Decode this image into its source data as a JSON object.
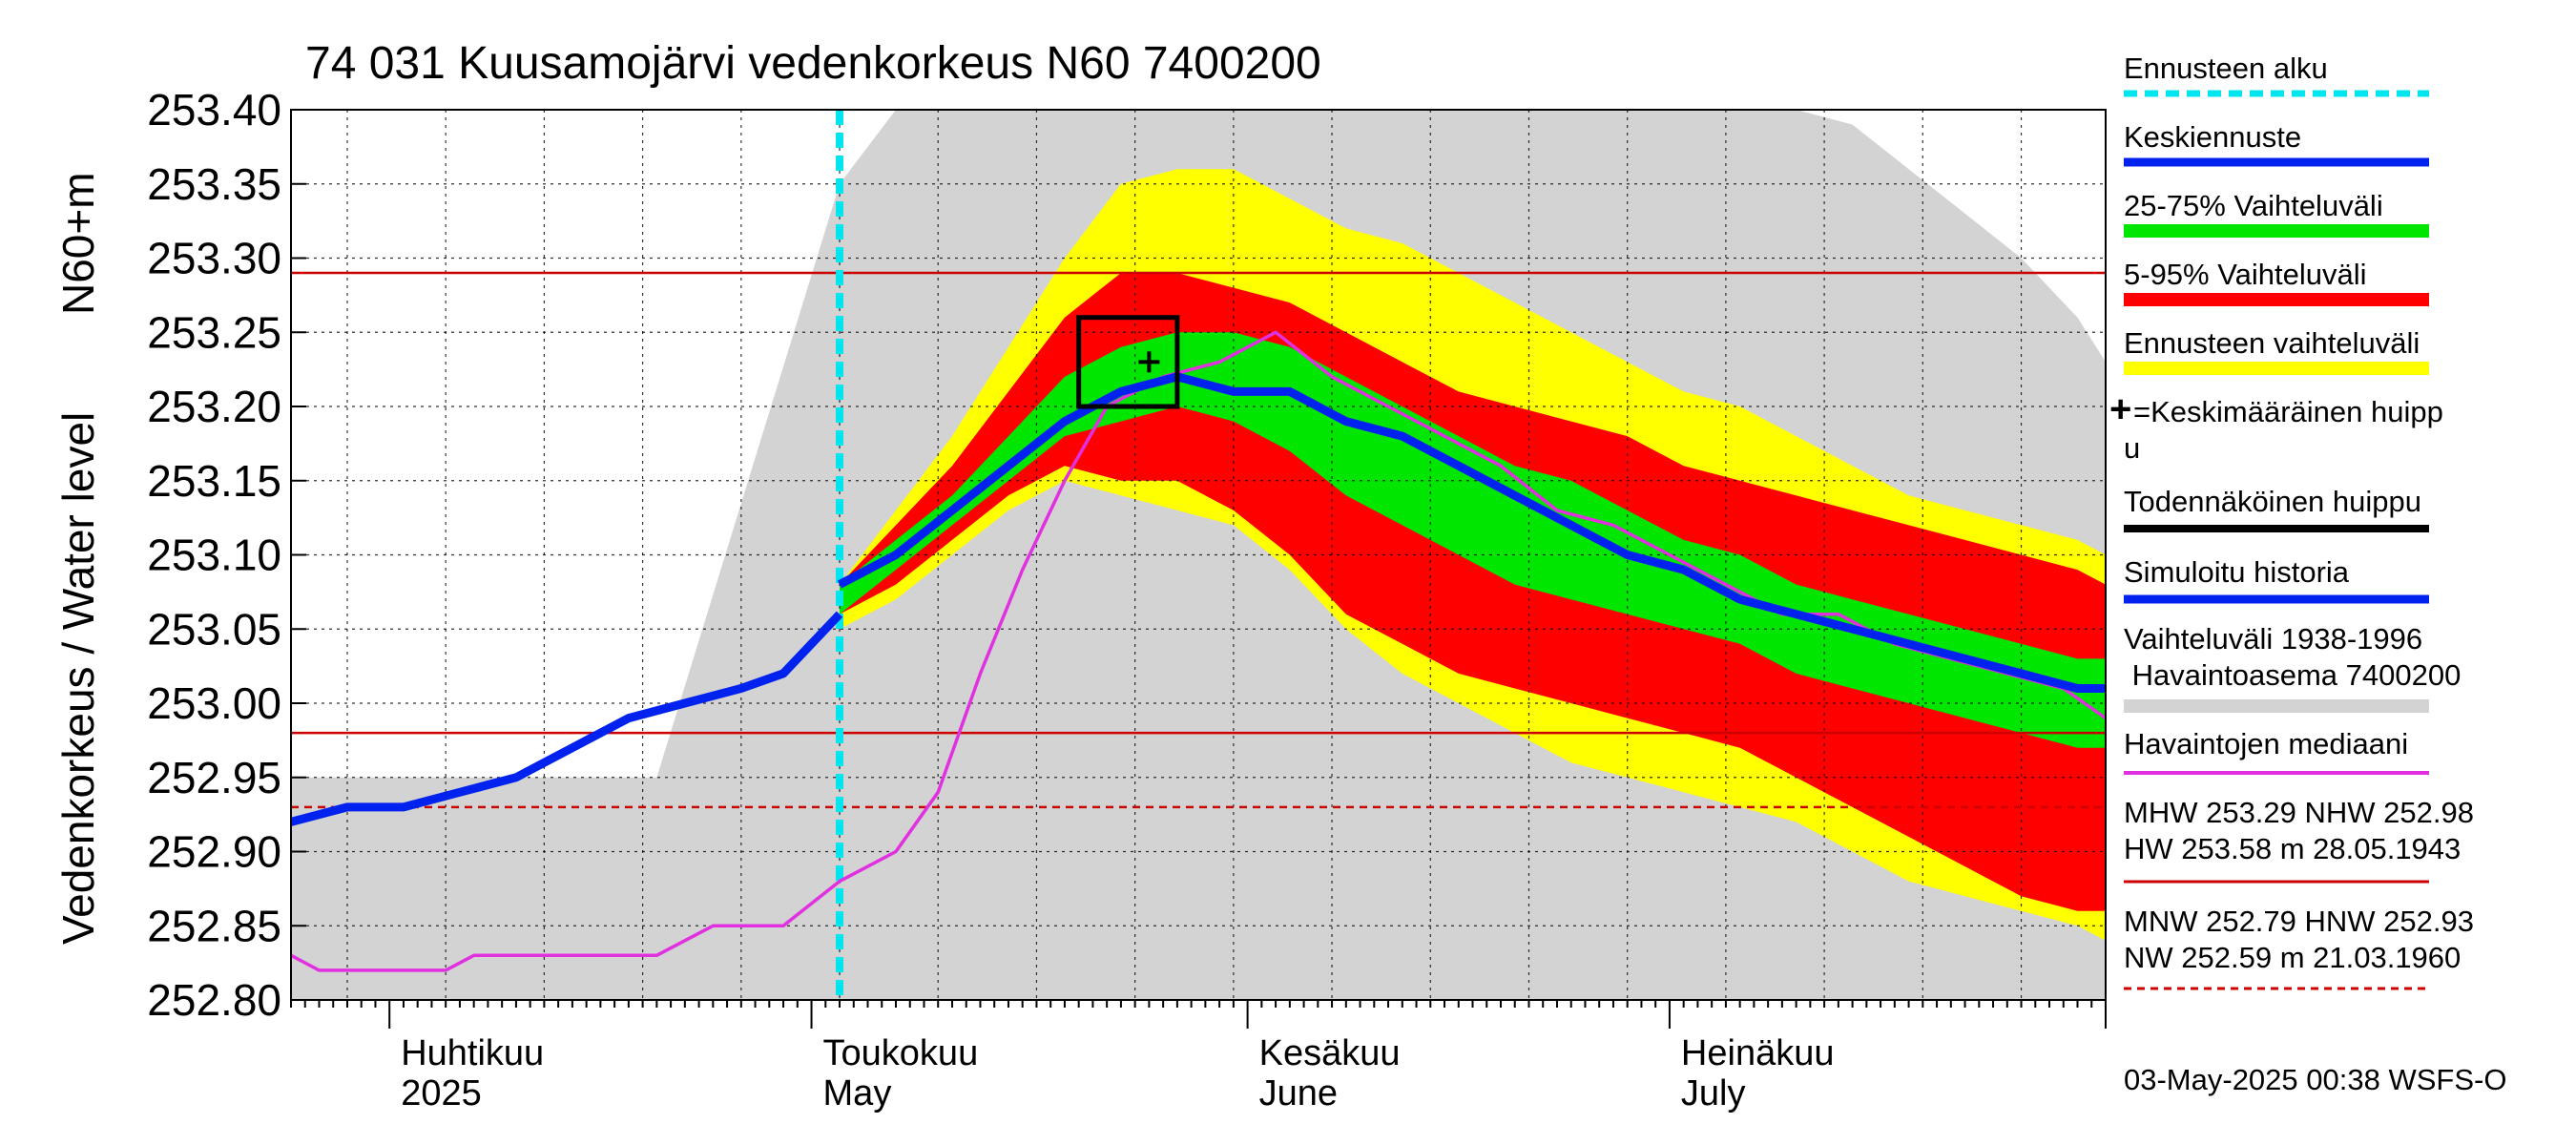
{
  "chart_data": {
    "type": "area",
    "title": "74 031 Kuusamojärvi vedenkorkeus N60 7400200",
    "ylabel_line1": "Vedenkorkeus / Water level",
    "ylabel_line2": "N60+m",
    "ylim": [
      252.8,
      253.4
    ],
    "y_ticks": [
      "253.40",
      "253.35",
      "253.30",
      "253.25",
      "253.20",
      "253.15",
      "253.10",
      "253.05",
      "253.00",
      "252.95",
      "252.90",
      "252.85",
      "252.80"
    ],
    "x_start": "2025-03-25",
    "x_end": "2025-08-01",
    "x_months": [
      {
        "date": "2025-04-01",
        "fi": "Huhtikuu",
        "en": "2025"
      },
      {
        "date": "2025-05-01",
        "fi": "Toukokuu",
        "en": "May"
      },
      {
        "date": "2025-06-01",
        "fi": "Kesäkuu",
        "en": "June"
      },
      {
        "date": "2025-07-01",
        "fi": "Heinäkuu",
        "en": "July"
      }
    ],
    "forecast_start": "2025-05-03",
    "reference_lines": {
      "MHW": 253.29,
      "NHW": 252.98,
      "HNW": 252.93
    },
    "peak_marker": {
      "date": "2025-05-25",
      "value": 253.23
    },
    "peak_box": {
      "date_from": "2025-05-20",
      "date_to": "2025-05-27",
      "value_from": 253.2,
      "value_to": 253.26
    },
    "bands": {
      "dates": [
        "2025-05-03",
        "2025-05-07",
        "2025-05-11",
        "2025-05-15",
        "2025-05-19",
        "2025-05-23",
        "2025-05-27",
        "2025-05-31",
        "2025-06-04",
        "2025-06-08",
        "2025-06-12",
        "2025-06-16",
        "2025-06-20",
        "2025-06-24",
        "2025-06-28",
        "2025-07-02",
        "2025-07-06",
        "2025-07-10",
        "2025-07-14",
        "2025-07-18",
        "2025-07-22",
        "2025-07-26",
        "2025-07-30",
        "2025-08-01"
      ],
      "hist_upper": [
        253.35,
        253.4,
        253.4,
        253.4,
        253.4,
        253.4,
        253.4,
        253.4,
        253.4,
        253.4,
        253.4,
        253.4,
        253.4,
        253.4,
        253.4,
        253.4,
        253.4,
        253.4,
        253.39,
        253.36,
        253.33,
        253.3,
        253.26,
        253.23
      ],
      "hist_lower": [
        252.8,
        252.8,
        252.8,
        252.8,
        252.8,
        252.8,
        252.8,
        252.8,
        252.8,
        252.8,
        252.8,
        252.8,
        252.8,
        252.8,
        252.8,
        252.8,
        252.8,
        252.8,
        252.8,
        252.8,
        252.8,
        252.8,
        252.8,
        252.8
      ],
      "fc_upper": [
        253.08,
        253.13,
        253.18,
        253.24,
        253.3,
        253.35,
        253.36,
        253.36,
        253.34,
        253.32,
        253.31,
        253.29,
        253.27,
        253.25,
        253.23,
        253.21,
        253.2,
        253.18,
        253.16,
        253.14,
        253.13,
        253.12,
        253.11,
        253.1
      ],
      "fc_lower": [
        253.05,
        253.07,
        253.1,
        253.13,
        253.15,
        253.14,
        253.13,
        253.12,
        253.09,
        253.05,
        253.02,
        253.0,
        252.98,
        252.96,
        252.95,
        252.94,
        252.93,
        252.92,
        252.9,
        252.88,
        252.87,
        252.86,
        252.85,
        252.84
      ],
      "p95_upper": [
        253.08,
        253.12,
        253.16,
        253.21,
        253.26,
        253.29,
        253.29,
        253.28,
        253.27,
        253.25,
        253.23,
        253.21,
        253.2,
        253.19,
        253.18,
        253.16,
        253.15,
        253.14,
        253.13,
        253.12,
        253.11,
        253.1,
        253.09,
        253.08
      ],
      "p05_lower": [
        253.06,
        253.08,
        253.11,
        253.14,
        253.16,
        253.15,
        253.15,
        253.13,
        253.1,
        253.06,
        253.04,
        253.02,
        253.01,
        253.0,
        252.99,
        252.98,
        252.97,
        252.95,
        252.93,
        252.91,
        252.89,
        252.87,
        252.86,
        252.86
      ],
      "p75_upper": [
        253.08,
        253.11,
        253.14,
        253.18,
        253.22,
        253.24,
        253.25,
        253.25,
        253.24,
        253.22,
        253.2,
        253.18,
        253.16,
        253.15,
        253.13,
        253.11,
        253.1,
        253.08,
        253.07,
        253.06,
        253.05,
        253.04,
        253.03,
        253.03
      ],
      "p25_lower": [
        253.06,
        253.09,
        253.12,
        253.15,
        253.18,
        253.19,
        253.2,
        253.19,
        253.17,
        253.14,
        253.12,
        253.1,
        253.08,
        253.07,
        253.06,
        253.05,
        253.04,
        253.02,
        253.01,
        253.0,
        252.99,
        252.98,
        252.97,
        252.97
      ]
    },
    "simulated_history": {
      "dates": [
        "2025-03-25",
        "2025-03-29",
        "2025-04-02",
        "2025-04-06",
        "2025-04-10",
        "2025-04-14",
        "2025-04-18",
        "2025-04-22",
        "2025-04-26",
        "2025-04-29",
        "2025-05-01",
        "2025-05-03"
      ],
      "values": [
        252.92,
        252.93,
        252.93,
        252.94,
        252.95,
        252.97,
        252.99,
        253.0,
        253.01,
        253.02,
        253.04,
        253.06
      ]
    },
    "mean_forecast": {
      "dates": [
        "2025-05-03",
        "2025-05-07",
        "2025-05-11",
        "2025-05-15",
        "2025-05-19",
        "2025-05-23",
        "2025-05-27",
        "2025-05-31",
        "2025-06-04",
        "2025-06-08",
        "2025-06-12",
        "2025-06-16",
        "2025-06-20",
        "2025-06-24",
        "2025-06-28",
        "2025-07-02",
        "2025-07-06",
        "2025-07-10",
        "2025-07-14",
        "2025-07-18",
        "2025-07-22",
        "2025-07-26",
        "2025-07-30",
        "2025-08-01"
      ],
      "values": [
        253.08,
        253.1,
        253.13,
        253.16,
        253.19,
        253.21,
        253.22,
        253.21,
        253.21,
        253.19,
        253.18,
        253.16,
        253.14,
        253.12,
        253.1,
        253.09,
        253.07,
        253.06,
        253.05,
        253.04,
        253.03,
        253.02,
        253.01,
        253.01
      ]
    },
    "observed_median": {
      "dates": [
        "2025-03-25",
        "2025-03-27",
        "2025-04-05",
        "2025-04-07",
        "2025-04-20",
        "2025-04-22",
        "2025-04-24",
        "2025-04-29",
        "2025-05-03",
        "2025-05-07",
        "2025-05-10",
        "2025-05-13",
        "2025-05-16",
        "2025-05-19",
        "2025-05-22",
        "2025-05-26",
        "2025-05-30",
        "2025-06-03",
        "2025-06-07",
        "2025-06-11",
        "2025-06-15",
        "2025-06-19",
        "2025-06-23",
        "2025-06-27",
        "2025-07-01",
        "2025-07-05",
        "2025-07-09",
        "2025-07-13",
        "2025-07-17",
        "2025-07-21",
        "2025-07-25",
        "2025-07-29",
        "2025-08-01"
      ],
      "values": [
        252.83,
        252.82,
        252.82,
        252.83,
        252.83,
        252.84,
        252.85,
        252.85,
        252.88,
        252.9,
        252.94,
        253.02,
        253.09,
        253.15,
        253.2,
        253.22,
        253.23,
        253.25,
        253.22,
        253.2,
        253.18,
        253.16,
        253.13,
        253.12,
        253.1,
        253.08,
        253.06,
        253.06,
        253.04,
        253.03,
        253.02,
        253.01,
        252.99
      ]
    }
  },
  "legend": {
    "forecast_start": "Ennusteen alku",
    "mean_forecast": "Keskiennuste",
    "range_25_75": "25-75% Vaihteluväli",
    "range_5_95": "5-95% Vaihteluväli",
    "forecast_range": "Ennusteen vaihteluväli",
    "mean_peak_line1": "=Keskimääräinen huipp",
    "mean_peak_line2": "u",
    "probable_peak": "Todennäköinen huippu",
    "simulated_history": "Simuloitu historia",
    "hist_range_line1": "Vaihteluväli 1938-1996",
    "hist_range_line2": " Havaintoasema 7400200",
    "observed_median": "Havaintojen mediaani",
    "stats1_line1": "MHW 253.29 NHW 252.98",
    "stats1_line2": "HW 253.58 m 28.05.1943",
    "stats2_line1": "MNW 252.79 HNW 252.93",
    "stats2_line2": "NW 252.59 m 21.03.1960"
  },
  "footer": "03-May-2025 00:38 WSFS-O",
  "colors": {
    "hist_band": "#d3d3d3",
    "forecast_band": "#ffff00",
    "band_5_95": "#ff0000",
    "band_25_75": "#00e600",
    "mean_line": "#0022ee",
    "median_line": "#e030e0",
    "reference_red": "#cc0000",
    "forecast_start": "#00e5ee",
    "peak": "#000000"
  }
}
